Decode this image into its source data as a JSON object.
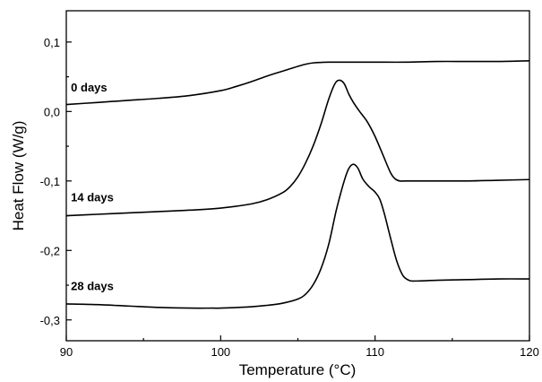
{
  "chart_data": {
    "type": "line",
    "xlabel": "Temperature (°C)",
    "ylabel": "Heat Flow (W/g)",
    "xlim": [
      90,
      120
    ],
    "ylim": [
      -0.33,
      0.145
    ],
    "x_ticks": [
      90,
      100,
      110,
      120
    ],
    "x_tick_labels": [
      "90",
      "100",
      "110",
      "120"
    ],
    "y_ticks": [
      -0.3,
      -0.2,
      -0.1,
      0.0,
      0.1
    ],
    "y_tick_labels": [
      "-0,3",
      "-0,2",
      "-0,1",
      "0,0",
      "0,1"
    ],
    "grid": false,
    "legend": "none",
    "series": [
      {
        "label": "0 days",
        "x": [
          90,
          92,
          94,
          96,
          98,
          100,
          101,
          102,
          103,
          104,
          105,
          105.5,
          106,
          107,
          108,
          110,
          112,
          114,
          116,
          118,
          120
        ],
        "y": [
          0.01,
          0.013,
          0.016,
          0.019,
          0.023,
          0.03,
          0.036,
          0.043,
          0.051,
          0.058,
          0.065,
          0.068,
          0.07,
          0.071,
          0.071,
          0.071,
          0.071,
          0.072,
          0.072,
          0.072,
          0.073
        ]
      },
      {
        "label": "14 days",
        "x": [
          90,
          92,
          94,
          96,
          98,
          100,
          102,
          103,
          104,
          104.5,
          105,
          105.5,
          106,
          106.5,
          107,
          107.4,
          107.7,
          108.0,
          108.3,
          108.6,
          109.0,
          109.5,
          110.0,
          110.5,
          111.0,
          111.3,
          111.6,
          112,
          114,
          116,
          118,
          120
        ],
        "y": [
          -0.15,
          -0.148,
          -0.146,
          -0.144,
          -0.142,
          -0.139,
          -0.133,
          -0.127,
          -0.117,
          -0.108,
          -0.094,
          -0.074,
          -0.049,
          -0.018,
          0.018,
          0.04,
          0.045,
          0.04,
          0.025,
          0.013,
          0.0,
          -0.015,
          -0.036,
          -0.062,
          -0.088,
          -0.097,
          -0.1,
          -0.1,
          -0.1,
          -0.1,
          -0.099,
          -0.098
        ]
      },
      {
        "label": "28 days",
        "x": [
          90,
          92,
          94,
          96,
          98,
          99.5,
          100,
          102,
          103,
          104,
          105,
          105.5,
          106,
          106.5,
          107,
          107.5,
          108.0,
          108.3,
          108.6,
          108.9,
          109.2,
          109.6,
          110.0,
          110.3,
          110.6,
          111.0,
          111.4,
          111.8,
          112.2,
          112.6,
          114,
          116,
          118,
          120
        ],
        "y": [
          -0.277,
          -0.278,
          -0.28,
          -0.282,
          -0.283,
          -0.283,
          -0.283,
          -0.281,
          -0.279,
          -0.276,
          -0.27,
          -0.263,
          -0.249,
          -0.226,
          -0.191,
          -0.141,
          -0.1,
          -0.082,
          -0.076,
          -0.082,
          -0.097,
          -0.108,
          -0.116,
          -0.126,
          -0.147,
          -0.182,
          -0.215,
          -0.236,
          -0.243,
          -0.244,
          -0.243,
          -0.242,
          -0.241,
          -0.241
        ]
      }
    ],
    "label_positions": [
      {
        "text": "0 days",
        "x": 90.3,
        "y": 0.029
      },
      {
        "text": "14 days",
        "x": 90.3,
        "y": -0.129
      },
      {
        "text": "28 days",
        "x": 90.3,
        "y": -0.257
      }
    ]
  }
}
